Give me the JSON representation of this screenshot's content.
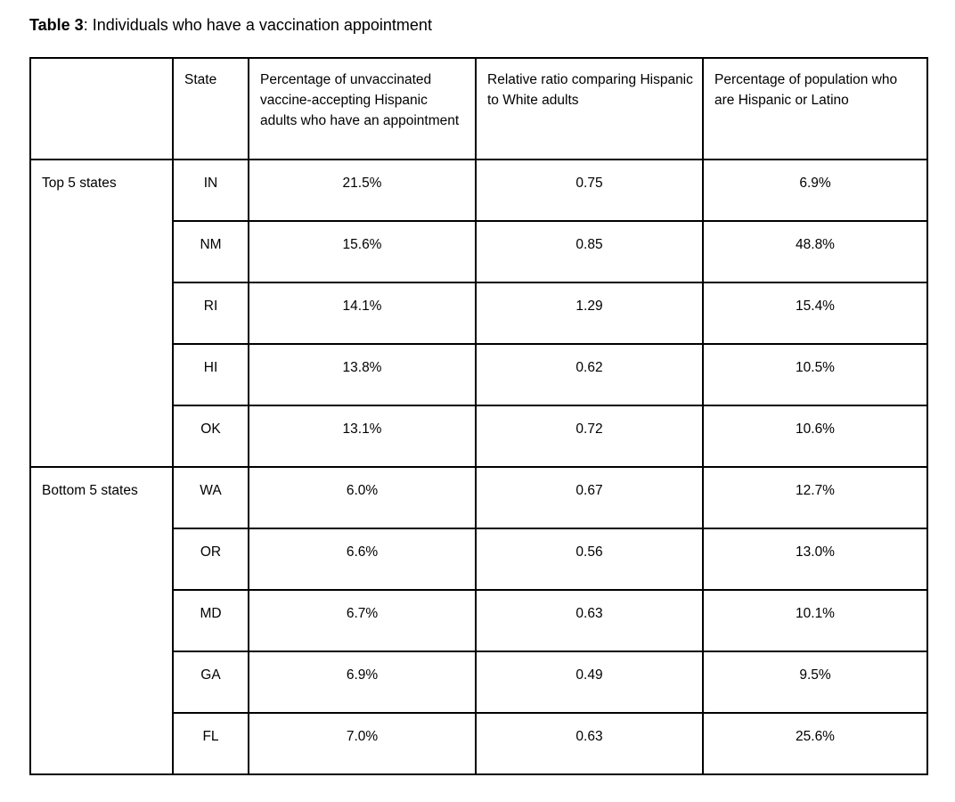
{
  "title": {
    "prefix": "Table 3",
    "text": ": Individuals who have a vaccination appointment"
  },
  "table": {
    "columns": [
      "",
      "State",
      "Percentage of unvaccinated vaccine-accepting Hispanic adults who have an appointment",
      "Relative ratio comparing Hispanic to White adults",
      "Percentage of population who are Hispanic or Latino"
    ],
    "groups": [
      {
        "label": "Top 5 states",
        "rows": [
          {
            "state": "IN",
            "pct_appointment": "21.5%",
            "relative_ratio": "0.75",
            "pct_population": "6.9%"
          },
          {
            "state": "NM",
            "pct_appointment": "15.6%",
            "relative_ratio": "0.85",
            "pct_population": "48.8%"
          },
          {
            "state": "RI",
            "pct_appointment": "14.1%",
            "relative_ratio": "1.29",
            "pct_population": "15.4%"
          },
          {
            "state": "HI",
            "pct_appointment": "13.8%",
            "relative_ratio": "0.62",
            "pct_population": "10.5%"
          },
          {
            "state": "OK",
            "pct_appointment": "13.1%",
            "relative_ratio": "0.72",
            "pct_population": "10.6%"
          }
        ]
      },
      {
        "label": "Bottom 5 states",
        "rows": [
          {
            "state": "WA",
            "pct_appointment": "6.0%",
            "relative_ratio": "0.67",
            "pct_population": "12.7%"
          },
          {
            "state": "OR",
            "pct_appointment": "6.6%",
            "relative_ratio": "0.56",
            "pct_population": "13.0%"
          },
          {
            "state": "MD",
            "pct_appointment": "6.7%",
            "relative_ratio": "0.63",
            "pct_population": "10.1%"
          },
          {
            "state": "GA",
            "pct_appointment": "6.9%",
            "relative_ratio": "0.49",
            "pct_population": "9.5%"
          },
          {
            "state": "FL",
            "pct_appointment": "7.0%",
            "relative_ratio": "0.63",
            "pct_population": "25.6%"
          }
        ]
      }
    ]
  },
  "colors": {
    "background": "#ffffff",
    "border": "#000000",
    "text": "#000000"
  }
}
